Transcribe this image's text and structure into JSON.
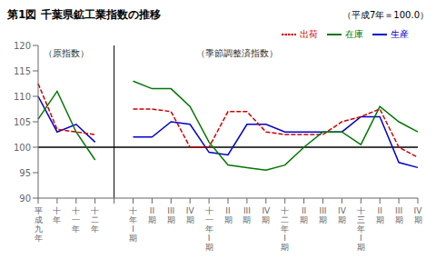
{
  "chart_data": {
    "type": "line",
    "title": "第1図  千葉県鉱工業指数の推移",
    "subtitle": "（平成7年＝100.0）",
    "annotations": [
      "（原指数）",
      "（季節調整済指数）"
    ],
    "categories": [
      "平成九年",
      "十年",
      "十一年",
      "十二年",
      null,
      "十年I期",
      "II期",
      "III期",
      "IV期",
      "十一年I期",
      "II期",
      "III期",
      "IV期",
      "十二年I期",
      "II期",
      "III期",
      "IV期",
      "十三年I期",
      "II期",
      "III期",
      "IV期"
    ],
    "series": [
      {
        "name": "生産",
        "color": "#0000cc",
        "line_style": "solid",
        "values": [
          110.0,
          103.0,
          104.5,
          101.0,
          null,
          102.0,
          102.0,
          105.0,
          104.5,
          99.0,
          98.5,
          104.5,
          104.5,
          103.0,
          103.0,
          103.0,
          103.0,
          106.0,
          106.0,
          97.0,
          96.0
        ]
      },
      {
        "name": "出荷",
        "color": "#cc0000",
        "line_style": "dashed",
        "values": [
          112.5,
          103.5,
          103.0,
          102.5,
          null,
          107.5,
          107.5,
          107.0,
          100.0,
          100.0,
          107.0,
          107.0,
          103.0,
          102.5,
          102.5,
          102.5,
          105.0,
          106.0,
          107.5,
          100.0,
          98.0
        ]
      },
      {
        "name": "在庫",
        "color": "#007700",
        "line_style": "solid",
        "values": [
          105.5,
          111.0,
          103.0,
          97.5,
          null,
          113.0,
          111.5,
          111.5,
          108.0,
          101.0,
          96.5,
          96.0,
          95.5,
          96.5,
          100.0,
          103.0,
          103.0,
          100.5,
          108.0,
          105.0,
          103.0
        ]
      }
    ],
    "ylim": [
      90,
      120
    ],
    "yticks": [
      90,
      95,
      100,
      105,
      110,
      115,
      120
    ],
    "reference_y": 100,
    "grid": false,
    "legend": "upper right"
  }
}
